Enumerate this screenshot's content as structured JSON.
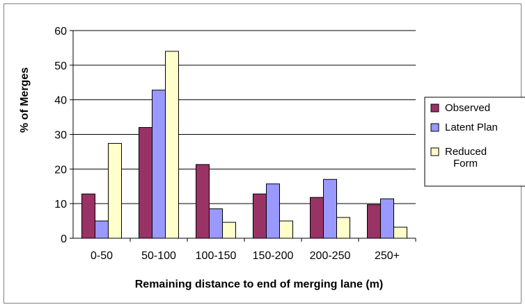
{
  "chart_data": {
    "type": "bar",
    "title": "",
    "xlabel": "Remaining distance to end of merging lane (m)",
    "ylabel": "% of Merges",
    "categories": [
      "0-50",
      "50-100",
      "100-150",
      "150-200",
      "200-250",
      "250+"
    ],
    "ylim": [
      0,
      60
    ],
    "yticks": [
      0,
      10,
      20,
      30,
      40,
      50,
      60
    ],
    "grid": true,
    "legend_position": "right",
    "series": [
      {
        "name": "Observed",
        "color": "#993366",
        "values": [
          12.8,
          32.0,
          21.3,
          12.8,
          11.8,
          9.7
        ]
      },
      {
        "name": "Latent Plan",
        "color": "#9999ff",
        "values": [
          5.0,
          42.8,
          8.5,
          15.7,
          17.0,
          11.4
        ]
      },
      {
        "name": "Reduced Form",
        "legend_lines": [
          "Reduced",
          "Form"
        ],
        "color": "#ffffcc",
        "values": [
          27.4,
          54.0,
          4.6,
          5.0,
          6.0,
          3.2
        ]
      }
    ]
  }
}
